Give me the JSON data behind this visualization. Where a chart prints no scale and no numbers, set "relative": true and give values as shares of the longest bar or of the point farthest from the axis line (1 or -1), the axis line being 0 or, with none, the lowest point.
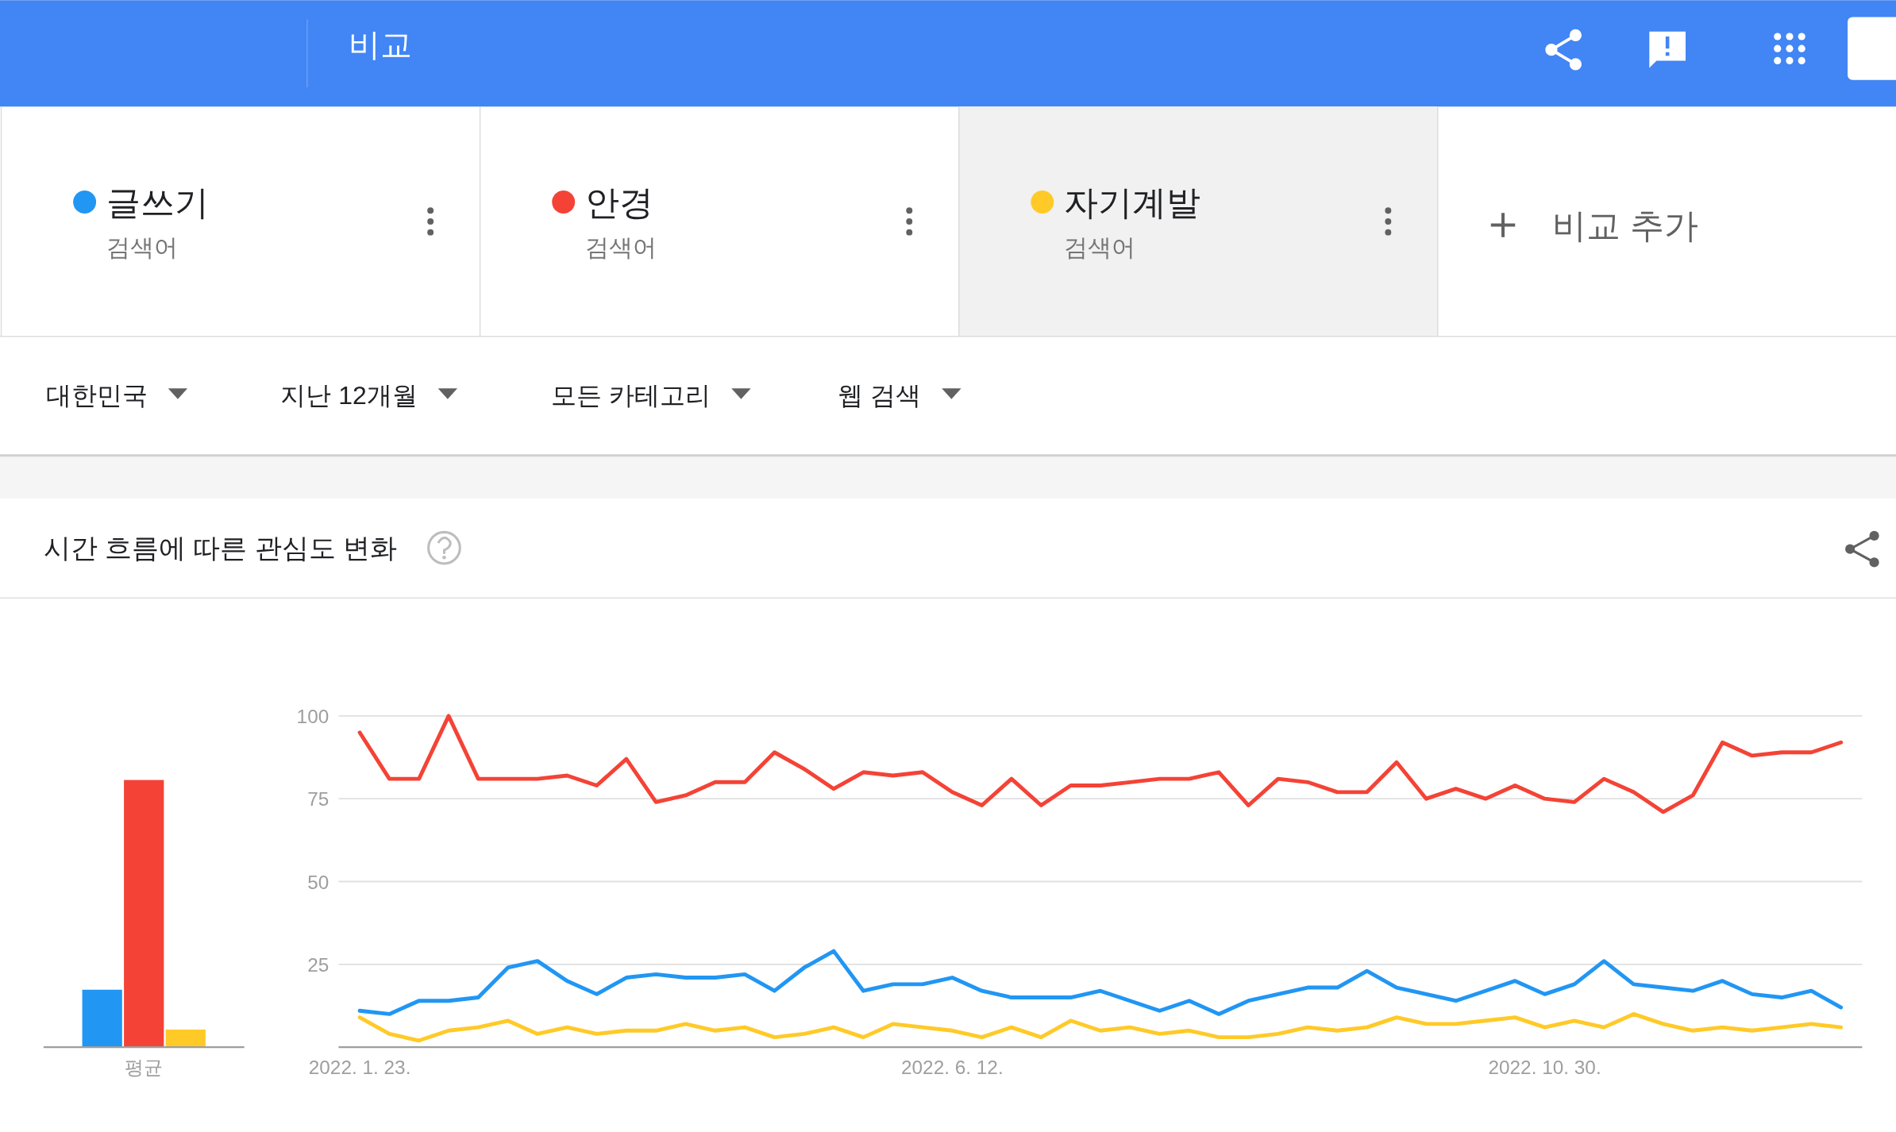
{
  "chart_data": [
    {
      "type": "bar",
      "relative": true,
      "categories": [
        "평균"
      ],
      "series": [
        {
          "color": "#2196f3",
          "values": [
            0.215
          ]
        },
        {
          "color": "#f44336",
          "values": [
            1
          ]
        },
        {
          "color": "#ffca28",
          "values": [
            0.066
          ]
        }
      ]
    },
    {
      "type": "line",
      "title": "시간 흐름에 따른 관심도 변화",
      "legend": "top",
      "grid": "y",
      "x": [
        "2022-01-23",
        "2022-01-30",
        "2022-02-06",
        "2022-02-13",
        "2022-02-20",
        "2022-02-27",
        "2022-03-06",
        "2022-03-13",
        "2022-03-20",
        "2022-03-27",
        "2022-04-03",
        "2022-04-10",
        "2022-04-17",
        "2022-04-24",
        "2022-05-01",
        "2022-05-08",
        "2022-05-15",
        "2022-05-22",
        "2022-05-29",
        "2022-06-05",
        "2022-06-12",
        "2022-06-19",
        "2022-06-26",
        "2022-07-03",
        "2022-07-10",
        "2022-07-17",
        "2022-07-24",
        "2022-07-31",
        "2022-08-07",
        "2022-08-14",
        "2022-08-21",
        "2022-08-28",
        "2022-09-04",
        "2022-09-11",
        "2022-09-18",
        "2022-09-25",
        "2022-10-02",
        "2022-10-09",
        "2022-10-16",
        "2022-10-23",
        "2022-10-30",
        "2022-11-06",
        "2022-11-13",
        "2022-11-20",
        "2022-11-27",
        "2022-12-04",
        "2022-12-11",
        "2022-12-18",
        "2022-12-25",
        "2023-01-01",
        "2023-01-08"
      ],
      "series": [
        {
          "name": "글쓰기",
          "color": "#2196f3",
          "values": [
            11,
            10,
            14,
            14,
            15,
            24,
            26,
            20,
            16,
            21,
            22,
            21,
            21,
            22,
            17,
            24,
            29,
            17,
            19,
            19,
            21,
            17,
            15,
            15,
            15,
            17,
            14,
            11,
            14,
            10,
            14,
            16,
            18,
            18,
            23,
            18,
            16,
            14,
            17,
            20,
            16,
            19,
            26,
            19,
            18,
            17,
            20,
            16,
            15,
            17,
            12
          ]
        },
        {
          "name": "안경",
          "color": "#f44336",
          "values": [
            95,
            81,
            81,
            100,
            81,
            81,
            81,
            82,
            79,
            87,
            74,
            76,
            80,
            80,
            89,
            84,
            78,
            83,
            82,
            83,
            77,
            73,
            81,
            73,
            79,
            79,
            80,
            81,
            81,
            83,
            73,
            81,
            80,
            77,
            77,
            86,
            75,
            78,
            75,
            79,
            75,
            74,
            81,
            77,
            71,
            76,
            92,
            88,
            89,
            89,
            92
          ]
        },
        {
          "name": "자기계발",
          "color": "#ffca28",
          "values": [
            9,
            4,
            2,
            5,
            6,
            8,
            4,
            6,
            4,
            5,
            5,
            7,
            5,
            6,
            3,
            4,
            6,
            3,
            7,
            6,
            5,
            3,
            6,
            3,
            8,
            5,
            6,
            4,
            5,
            3,
            3,
            4,
            6,
            5,
            6,
            9,
            7,
            7,
            8,
            9,
            6,
            8,
            6,
            10,
            7,
            5,
            6,
            5,
            6,
            7,
            6
          ]
        }
      ],
      "xlim": [
        "2022-01-18",
        "2023-01-13"
      ],
      "xticks": [
        {
          "value": "2022-01-23",
          "label": "2022. 1. 23."
        },
        {
          "value": "2022-06-12",
          "label": "2022. 6. 12."
        },
        {
          "value": "2022-10-30",
          "label": "2022. 10. 30."
        }
      ],
      "ylim": [
        0,
        100
      ],
      "yticks": [
        {
          "value": 0,
          "label": null
        },
        25,
        50,
        75,
        100
      ],
      "annotations": [
        "비교",
        "검색어",
        "검색어",
        "검색어",
        "비교 추가",
        "대한민국",
        "지난 12개월",
        "모든 카테고리",
        "웹 검색"
      ]
    }
  ]
}
